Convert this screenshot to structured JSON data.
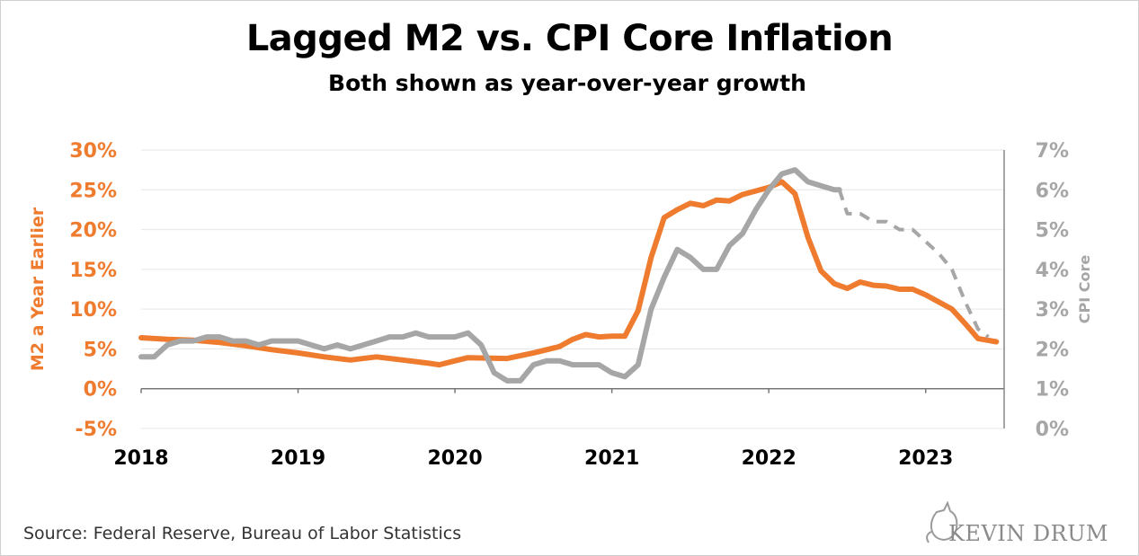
{
  "title": "Lagged M2 vs. CPI Core Inflation",
  "subtitle": "Both shown as year-over-year growth",
  "source": "Source: Federal Reserve, Bureau of Labor Statistics",
  "logo_text": "KEVIN DRUM",
  "colors": {
    "m2": "#ef7b2f",
    "cpi": "#a6a6a6",
    "grid": "#e6e6e6",
    "axis": "#666666",
    "left_axis_text": "#ef7b2f",
    "right_axis_text": "#a6a6a6"
  },
  "chart_data": {
    "type": "line",
    "xlabel": "",
    "x_ticks": [
      "2018",
      "2019",
      "2020",
      "2021",
      "2022",
      "2023"
    ],
    "x_range": [
      2018.0,
      2023.5
    ],
    "left_axis": {
      "label": "M2 a Year Earlier",
      "range": [
        -5,
        30
      ],
      "ticks": [
        "-5%",
        "0%",
        "5%",
        "10%",
        "15%",
        "20%",
        "25%",
        "30%"
      ]
    },
    "right_axis": {
      "label": "CPI Core",
      "range": [
        0,
        7
      ],
      "ticks": [
        "0%",
        "1%",
        "2%",
        "3%",
        "4%",
        "5%",
        "6%",
        "7%"
      ]
    },
    "grid": true,
    "series": [
      {
        "name": "M2 a Year Earlier",
        "axis": "left",
        "style": "solid",
        "points": [
          [
            2018.0,
            6.4
          ],
          [
            2018.167,
            6.2
          ],
          [
            2018.333,
            6.1
          ],
          [
            2018.5,
            5.8
          ],
          [
            2018.667,
            5.4
          ],
          [
            2018.833,
            4.9
          ],
          [
            2019.0,
            4.5
          ],
          [
            2019.167,
            4.0
          ],
          [
            2019.333,
            3.6
          ],
          [
            2019.5,
            4.0
          ],
          [
            2019.667,
            3.6
          ],
          [
            2019.833,
            3.2
          ],
          [
            2019.9,
            3.0
          ],
          [
            2020.0,
            3.5
          ],
          [
            2020.083,
            3.9
          ],
          [
            2020.333,
            3.8
          ],
          [
            2020.5,
            4.5
          ],
          [
            2020.667,
            5.3
          ],
          [
            2020.75,
            6.2
          ],
          [
            2020.833,
            6.8
          ],
          [
            2020.917,
            6.5
          ],
          [
            2021.0,
            6.6
          ],
          [
            2021.083,
            6.6
          ],
          [
            2021.167,
            9.8
          ],
          [
            2021.25,
            16.5
          ],
          [
            2021.333,
            21.5
          ],
          [
            2021.417,
            22.5
          ],
          [
            2021.5,
            23.3
          ],
          [
            2021.583,
            23.0
          ],
          [
            2021.667,
            23.7
          ],
          [
            2021.75,
            23.6
          ],
          [
            2021.833,
            24.4
          ],
          [
            2022.0,
            25.3
          ],
          [
            2022.083,
            26.0
          ],
          [
            2022.167,
            24.5
          ],
          [
            2022.25,
            19.0
          ],
          [
            2022.333,
            14.8
          ],
          [
            2022.417,
            13.2
          ],
          [
            2022.5,
            12.6
          ],
          [
            2022.583,
            13.4
          ],
          [
            2022.667,
            13.0
          ],
          [
            2022.75,
            12.9
          ],
          [
            2022.833,
            12.5
          ],
          [
            2022.917,
            12.5
          ],
          [
            2023.0,
            11.8
          ],
          [
            2023.167,
            10.0
          ],
          [
            2023.25,
            8.2
          ],
          [
            2023.333,
            6.3
          ],
          [
            2023.45,
            5.9
          ]
        ]
      },
      {
        "name": "CPI Core",
        "axis": "right",
        "style": "solid",
        "points": [
          [
            2018.0,
            1.8
          ],
          [
            2018.083,
            1.8
          ],
          [
            2018.167,
            2.1
          ],
          [
            2018.25,
            2.2
          ],
          [
            2018.333,
            2.2
          ],
          [
            2018.417,
            2.3
          ],
          [
            2018.5,
            2.3
          ],
          [
            2018.583,
            2.2
          ],
          [
            2018.667,
            2.2
          ],
          [
            2018.75,
            2.1
          ],
          [
            2018.833,
            2.2
          ],
          [
            2018.917,
            2.2
          ],
          [
            2019.0,
            2.2
          ],
          [
            2019.083,
            2.1
          ],
          [
            2019.167,
            2.0
          ],
          [
            2019.25,
            2.1
          ],
          [
            2019.333,
            2.0
          ],
          [
            2019.417,
            2.1
          ],
          [
            2019.5,
            2.2
          ],
          [
            2019.583,
            2.3
          ],
          [
            2019.667,
            2.3
          ],
          [
            2019.75,
            2.4
          ],
          [
            2019.833,
            2.3
          ],
          [
            2019.917,
            2.3
          ],
          [
            2020.0,
            2.3
          ],
          [
            2020.083,
            2.4
          ],
          [
            2020.167,
            2.1
          ],
          [
            2020.25,
            1.4
          ],
          [
            2020.333,
            1.2
          ],
          [
            2020.417,
            1.2
          ],
          [
            2020.5,
            1.6
          ],
          [
            2020.583,
            1.7
          ],
          [
            2020.667,
            1.7
          ],
          [
            2020.75,
            1.6
          ],
          [
            2020.833,
            1.6
          ],
          [
            2020.917,
            1.6
          ],
          [
            2021.0,
            1.4
          ],
          [
            2021.083,
            1.3
          ],
          [
            2021.167,
            1.6
          ],
          [
            2021.25,
            3.0
          ],
          [
            2021.333,
            3.8
          ],
          [
            2021.417,
            4.5
          ],
          [
            2021.5,
            4.3
          ],
          [
            2021.583,
            4.0
          ],
          [
            2021.667,
            4.0
          ],
          [
            2021.75,
            4.6
          ],
          [
            2021.833,
            4.9
          ],
          [
            2021.917,
            5.5
          ],
          [
            2022.0,
            6.0
          ],
          [
            2022.083,
            6.4
          ],
          [
            2022.167,
            6.5
          ],
          [
            2022.25,
            6.2
          ],
          [
            2022.333,
            6.1
          ],
          [
            2022.417,
            6.0
          ],
          [
            2022.45,
            6.0
          ]
        ]
      },
      {
        "name": "CPI Core (projected)",
        "axis": "right",
        "style": "dashed",
        "points": [
          [
            2022.45,
            6.0
          ],
          [
            2022.5,
            5.4
          ],
          [
            2022.583,
            5.4
          ],
          [
            2022.667,
            5.2
          ],
          [
            2022.75,
            5.2
          ],
          [
            2022.833,
            5.0
          ],
          [
            2022.917,
            5.0
          ],
          [
            2023.0,
            4.7
          ],
          [
            2023.083,
            4.4
          ],
          [
            2023.167,
            4.0
          ],
          [
            2023.25,
            3.2
          ],
          [
            2023.333,
            2.5
          ],
          [
            2023.4,
            2.3
          ]
        ]
      }
    ]
  }
}
